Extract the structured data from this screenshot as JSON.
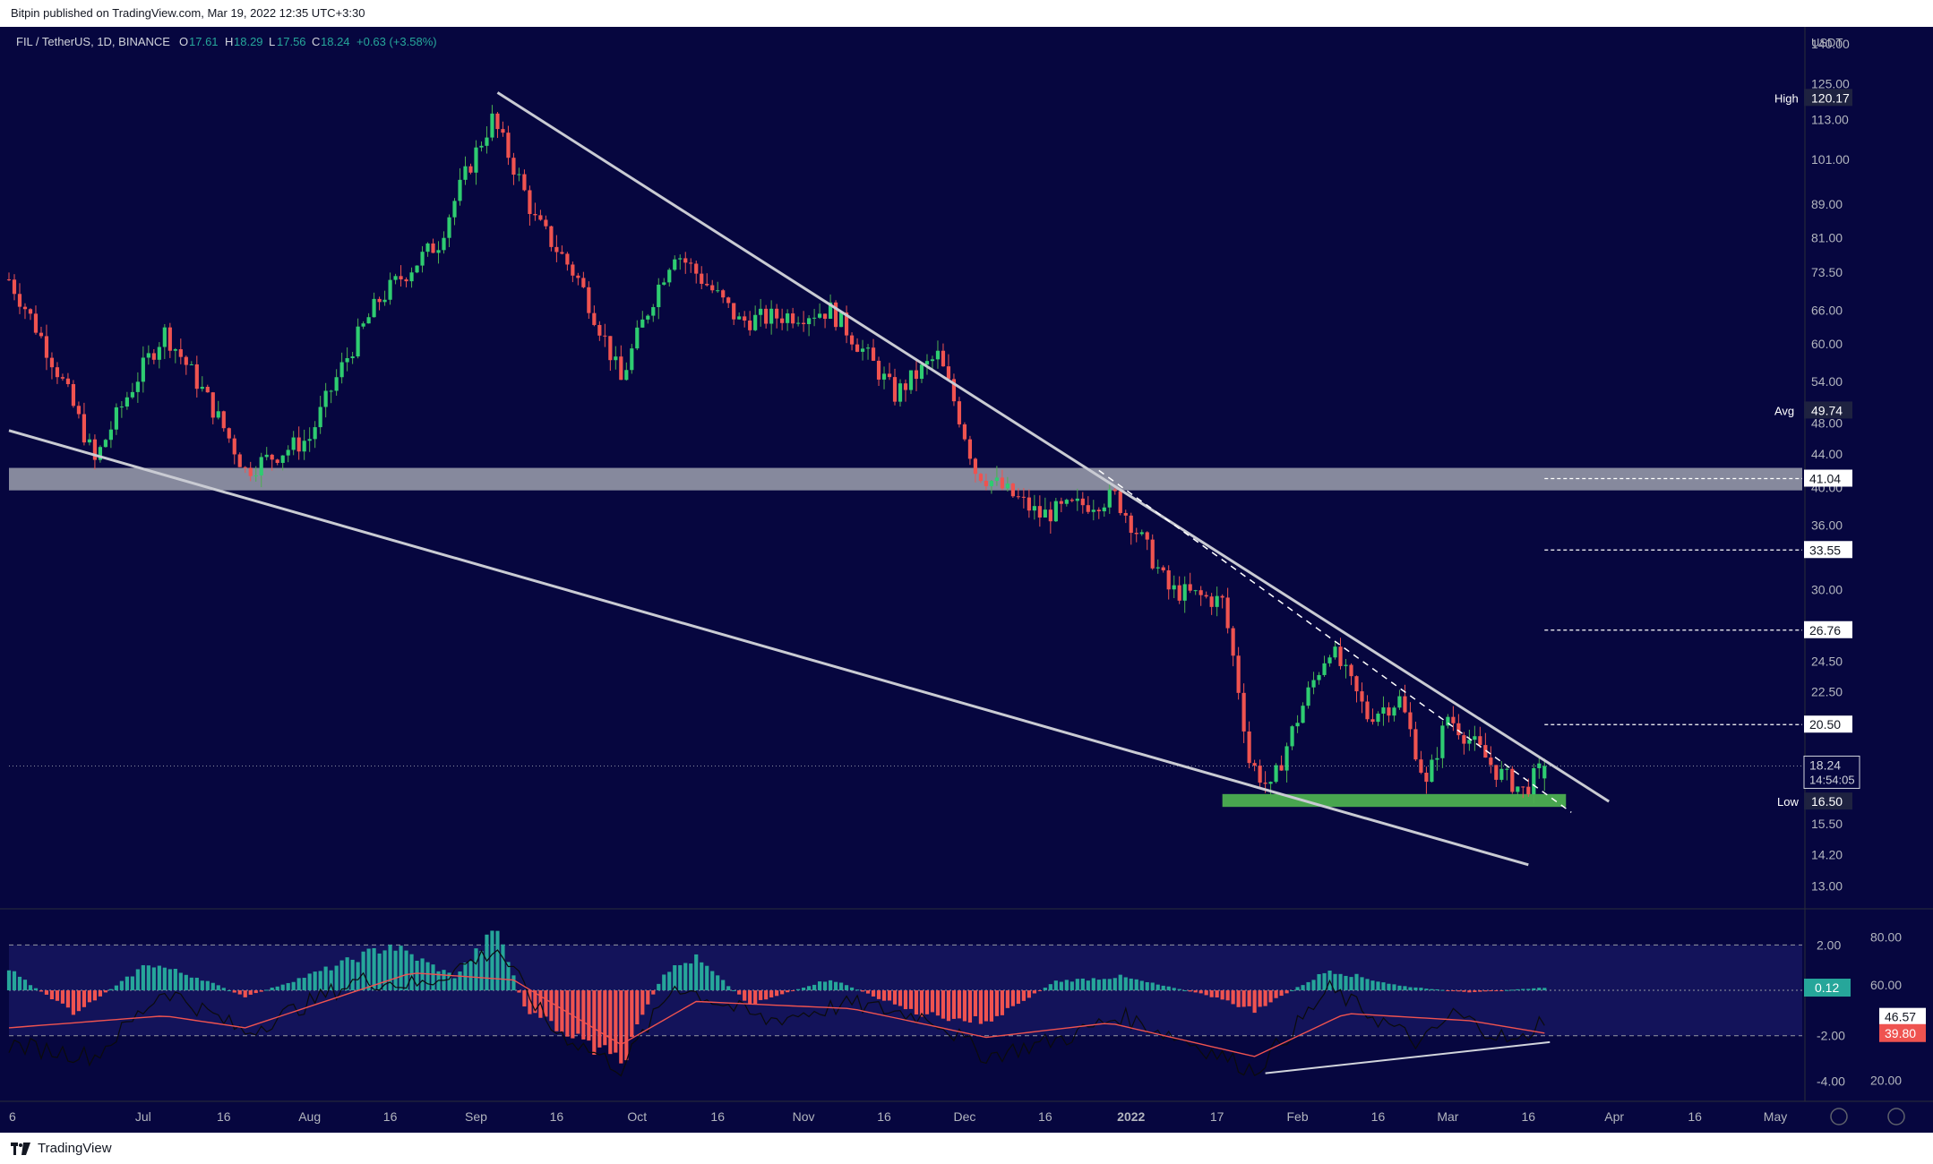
{
  "header": {
    "published_text": "Bitpin published on TradingView.com, Mar 19, 2022 12:35 UTC+3:30"
  },
  "footer": {
    "brand": "TradingView",
    "logo_icon": "tradingview-logo-icon"
  },
  "colors": {
    "background": "#06063f",
    "up": "#26a69a",
    "down": "#ef5350",
    "wick_up": "#4caf50",
    "trendline": "#c9cbd3",
    "support_zone": "#4caf50",
    "resistance_zone": "#b2b5be"
  },
  "chart_data": [
    {
      "type": "candlestick",
      "symbol_label": "FIL / TetherUS, 1D, BINANCE",
      "ohlc": {
        "open_label": "O",
        "open": "17.61",
        "high_label": "H",
        "high": "18.29",
        "low_label": "L",
        "low": "17.56",
        "close_label": "C",
        "close": "18.24",
        "change": "+0.63 (+3.58%)"
      },
      "y_scale": "log",
      "ylim": [
        12.5,
        145
      ],
      "y_ticks": [
        "140.00",
        "125.00",
        "113.00",
        "101.00",
        "89.00",
        "81.00",
        "73.50",
        "66.00",
        "60.00",
        "54.00",
        "48.00",
        "44.00",
        "40.00",
        "36.00",
        "30.00",
        "24.50",
        "22.50",
        "15.50",
        "14.20",
        "13.00"
      ],
      "currency_label": "USDT",
      "x_ticks": [
        "6",
        "Jul",
        "16",
        "Aug",
        "16",
        "Sep",
        "16",
        "Oct",
        "16",
        "Nov",
        "16",
        "Dec",
        "16",
        "2022",
        "17",
        "Feb",
        "16",
        "Mar",
        "16",
        "Apr",
        "16",
        "May"
      ],
      "x_range": [
        "2021-06-06",
        "2022-05-06"
      ],
      "key_points": [
        {
          "date": "2021-06-06",
          "close": 72
        },
        {
          "date": "2021-06-22",
          "close": 43
        },
        {
          "date": "2021-07-05",
          "close": 62
        },
        {
          "date": "2021-07-20",
          "close": 42
        },
        {
          "date": "2021-08-01",
          "close": 46
        },
        {
          "date": "2021-08-14",
          "close": 68
        },
        {
          "date": "2021-08-25",
          "close": 80
        },
        {
          "date": "2021-09-04",
          "close": 113
        },
        {
          "date": "2021-09-12",
          "close": 85
        },
        {
          "date": "2021-09-20",
          "close": 72
        },
        {
          "date": "2021-09-28",
          "close": 54
        },
        {
          "date": "2021-10-08",
          "close": 78
        },
        {
          "date": "2021-10-20",
          "close": 64
        },
        {
          "date": "2021-11-06",
          "close": 66
        },
        {
          "date": "2021-11-18",
          "close": 52
        },
        {
          "date": "2021-11-26",
          "close": 58
        },
        {
          "date": "2021-12-03",
          "close": 42
        },
        {
          "date": "2021-12-15",
          "close": 37
        },
        {
          "date": "2021-12-29",
          "close": 39
        },
        {
          "date": "2022-01-08",
          "close": 30
        },
        {
          "date": "2022-01-18",
          "close": 29
        },
        {
          "date": "2022-01-23",
          "close": 18.5
        },
        {
          "date": "2022-01-27",
          "close": 17
        },
        {
          "date": "2022-02-07",
          "close": 25.5
        },
        {
          "date": "2022-02-14",
          "close": 21
        },
        {
          "date": "2022-02-20",
          "close": 22
        },
        {
          "date": "2022-02-25",
          "close": 17.2
        },
        {
          "date": "2022-03-01",
          "close": 21
        },
        {
          "date": "2022-03-10",
          "close": 18
        },
        {
          "date": "2022-03-15",
          "close": 17
        },
        {
          "date": "2022-03-19",
          "close": 18.24
        }
      ],
      "markers": [
        {
          "label": "High",
          "value": "120.17"
        },
        {
          "label": "Avg",
          "value": "49.74"
        },
        {
          "label": "Low",
          "value": "16.50"
        }
      ],
      "levels": [
        "41.04",
        "33.55",
        "26.76",
        "20.50"
      ],
      "last_price": "18.24",
      "countdown": "14:54:05",
      "annotations": [
        {
          "kind": "trendline",
          "from": {
            "date": "2021-09-05",
            "price": 122
          },
          "to": {
            "date": "2022-03-31",
            "price": 16.5
          }
        },
        {
          "kind": "trendline",
          "from": {
            "date": "2021-06-06",
            "price": 47
          },
          "to": {
            "date": "2022-03-16",
            "price": 13.8
          }
        },
        {
          "kind": "dashed-trendline",
          "from": {
            "date": "2021-12-26",
            "price": 42
          },
          "to": {
            "date": "2022-03-24",
            "price": 16
          }
        },
        {
          "kind": "zone",
          "from_date": "2021-06-06",
          "to_date": "2022-05-06",
          "price_low": 39.7,
          "price_high": 42.3,
          "color": "resistance"
        },
        {
          "kind": "zone",
          "from_date": "2022-01-18",
          "to_date": "2022-03-23",
          "price_low": 16.25,
          "price_high": 16.85,
          "color": "support"
        }
      ]
    },
    {
      "type": "bar",
      "name": "oscillator",
      "left_axis_ticks": [
        "2.00",
        "-2.00",
        "-4.00"
      ],
      "right_axis_ticks": [
        "80.00",
        "60.00",
        "20.00"
      ],
      "ylim_histogram": [
        -4.5,
        3.2
      ],
      "ylim_rsi": [
        15,
        88
      ],
      "histogram_value": "0.12",
      "rsi_value": "46.57",
      "signal_value": "39.80",
      "dashed_levels": [
        2.0,
        -2.0
      ],
      "histogram_keypoints": [
        {
          "date": "2021-06-06",
          "value": 0.9
        },
        {
          "date": "2021-06-18",
          "value": -1.0
        },
        {
          "date": "2021-06-26",
          "value": 0.2
        },
        {
          "date": "2021-07-02",
          "value": 1.2
        },
        {
          "date": "2021-07-12",
          "value": 0.5
        },
        {
          "date": "2021-07-20",
          "value": -0.3
        },
        {
          "date": "2021-08-05",
          "value": 1.0
        },
        {
          "date": "2021-08-16",
          "value": 2.0
        },
        {
          "date": "2021-08-28",
          "value": 0.6
        },
        {
          "date": "2021-09-05",
          "value": 2.7
        },
        {
          "date": "2021-09-10",
          "value": -0.8
        },
        {
          "date": "2021-09-20",
          "value": -2.2
        },
        {
          "date": "2021-09-28",
          "value": -3.2
        },
        {
          "date": "2021-10-06",
          "value": 0.8
        },
        {
          "date": "2021-10-12",
          "value": 1.4
        },
        {
          "date": "2021-10-22",
          "value": -0.6
        },
        {
          "date": "2021-11-06",
          "value": 0.5
        },
        {
          "date": "2021-11-22",
          "value": -1.0
        },
        {
          "date": "2021-12-05",
          "value": -1.4
        },
        {
          "date": "2021-12-18",
          "value": 0.4
        },
        {
          "date": "2021-12-30",
          "value": 0.6
        },
        {
          "date": "2022-01-15",
          "value": -0.2
        },
        {
          "date": "2022-01-24",
          "value": -0.9
        },
        {
          "date": "2022-02-07",
          "value": 0.9
        },
        {
          "date": "2022-02-20",
          "value": 0.2
        },
        {
          "date": "2022-03-05",
          "value": -0.1
        },
        {
          "date": "2022-03-19",
          "value": 0.12
        }
      ],
      "rsi_keypoints": [
        {
          "date": "2021-06-06",
          "value": 35
        },
        {
          "date": "2021-06-22",
          "value": 30
        },
        {
          "date": "2021-07-05",
          "value": 58
        },
        {
          "date": "2021-07-20",
          "value": 40
        },
        {
          "date": "2021-08-10",
          "value": 62
        },
        {
          "date": "2021-08-22",
          "value": 60
        },
        {
          "date": "2021-09-05",
          "value": 75
        },
        {
          "date": "2021-09-15",
          "value": 42
        },
        {
          "date": "2021-09-28",
          "value": 25
        },
        {
          "date": "2021-10-08",
          "value": 60
        },
        {
          "date": "2021-10-25",
          "value": 45
        },
        {
          "date": "2021-11-10",
          "value": 52
        },
        {
          "date": "2021-11-25",
          "value": 46
        },
        {
          "date": "2021-12-05",
          "value": 30
        },
        {
          "date": "2021-12-20",
          "value": 38
        },
        {
          "date": "2021-12-30",
          "value": 47
        },
        {
          "date": "2022-01-12",
          "value": 36
        },
        {
          "date": "2022-01-24",
          "value": 24
        },
        {
          "date": "2022-02-07",
          "value": 58
        },
        {
          "date": "2022-02-24",
          "value": 35
        },
        {
          "date": "2022-03-02",
          "value": 48
        },
        {
          "date": "2022-03-14",
          "value": 35
        },
        {
          "date": "2022-03-19",
          "value": 46.57
        }
      ],
      "signal_keypoints": [
        {
          "date": "2021-06-06",
          "value": 42
        },
        {
          "date": "2021-07-05",
          "value": 47
        },
        {
          "date": "2021-07-20",
          "value": 42
        },
        {
          "date": "2021-08-20",
          "value": 65
        },
        {
          "date": "2021-09-08",
          "value": 62
        },
        {
          "date": "2021-09-28",
          "value": 35
        },
        {
          "date": "2021-10-12",
          "value": 53
        },
        {
          "date": "2021-11-10",
          "value": 50
        },
        {
          "date": "2021-12-05",
          "value": 38
        },
        {
          "date": "2021-12-28",
          "value": 44
        },
        {
          "date": "2022-01-24",
          "value": 30
        },
        {
          "date": "2022-02-10",
          "value": 48
        },
        {
          "date": "2022-03-05",
          "value": 45
        },
        {
          "date": "2022-03-19",
          "value": 39.8
        }
      ],
      "divergence_line": {
        "from": {
          "date": "2022-01-26",
          "value": 23
        },
        "to": {
          "date": "2022-03-20",
          "value": 36
        }
      }
    }
  ]
}
